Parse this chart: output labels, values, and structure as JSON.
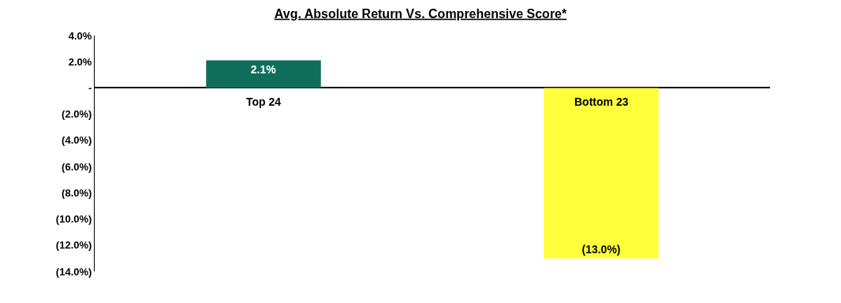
{
  "chart_data": {
    "type": "bar",
    "title": "Avg. Absolute Return Vs. Comprehensive Score*",
    "categories": [
      "Top 24",
      "Bottom 23"
    ],
    "values": [
      2.1,
      -13.0
    ],
    "colors": [
      "#0f6e5a",
      "#ffff3c"
    ],
    "value_labels": [
      "2.1%",
      "(13.0%)"
    ],
    "ylim": [
      -14,
      4
    ],
    "yticks": [
      {
        "value": 4,
        "label": "4.0%"
      },
      {
        "value": 2,
        "label": "2.0%"
      },
      {
        "value": 0,
        "label": "-"
      },
      {
        "value": -2,
        "label": "(2.0%)"
      },
      {
        "value": -4,
        "label": "(4.0%)"
      },
      {
        "value": -6,
        "label": "(6.0%)"
      },
      {
        "value": -8,
        "label": "(8.0%)"
      },
      {
        "value": -10,
        "label": "(10.0%)"
      },
      {
        "value": -12,
        "label": "(12.0%)"
      },
      {
        "value": -14,
        "label": "(14.0%)"
      }
    ],
    "legend": false
  }
}
